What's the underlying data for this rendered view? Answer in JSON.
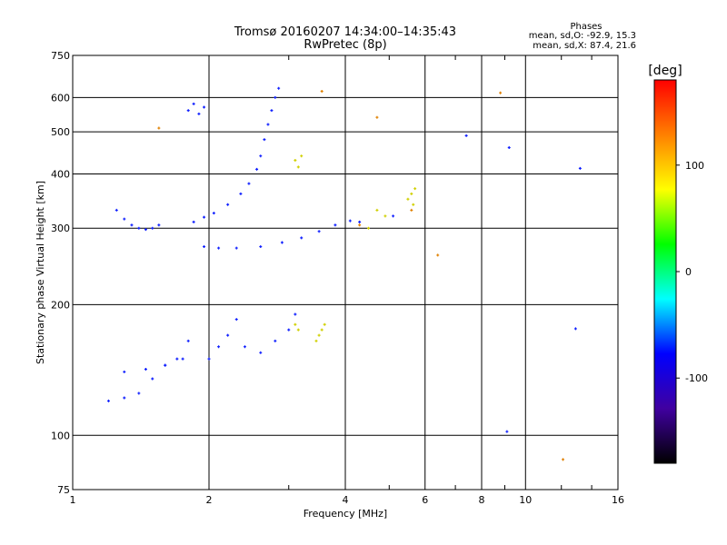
{
  "header": {
    "title_line1": "Tromsø 20160207 14:34:00–14:35:43",
    "title_line2": "RwPretec (8p)"
  },
  "stats": {
    "title": "Phases",
    "line1": "mean, sd,O: -92.9, 15.3",
    "line2": "mean, sd,X:  87.4, 21.6"
  },
  "colorbar": {
    "label": "[deg]",
    "ticks": [
      "100",
      "0",
      "-100"
    ],
    "tick_values": [
      100,
      0,
      -100
    ],
    "range": [
      -180,
      180
    ],
    "colors": [
      "#ff0000",
      "#ff8000",
      "#ffff00",
      "#00ff00",
      "#00ffff",
      "#0000ff",
      "#4000a0",
      "#000000"
    ]
  },
  "chart_data": {
    "type": "scatter",
    "title": "Tromsø 20160207 14:34:00–14:35:43",
    "subtitle": "RwPretec (8p)",
    "xlabel": "Frequency [MHz]",
    "ylabel": "Stationary phase Virtual Height [km]",
    "xscale": "log",
    "yscale": "log",
    "xlim": [
      1,
      16
    ],
    "ylim": [
      75,
      750
    ],
    "xticks": [
      "1",
      "2",
      "4",
      "6",
      "8",
      "10",
      "16"
    ],
    "xtick_values": [
      1,
      2,
      4,
      6,
      8,
      10,
      16
    ],
    "yticks": [
      "75",
      "100",
      "200",
      "300",
      "400",
      "500",
      "600",
      "750"
    ],
    "ytick_values": [
      75,
      100,
      200,
      300,
      400,
      500,
      600,
      750
    ],
    "grid": true,
    "series": [
      {
        "color": "#1020ff",
        "phase": "O-mode",
        "points": [
          [
            1.25,
            330
          ],
          [
            1.3,
            315
          ],
          [
            1.35,
            305
          ],
          [
            1.4,
            300
          ],
          [
            1.45,
            298
          ],
          [
            1.5,
            300
          ],
          [
            1.55,
            305
          ],
          [
            1.85,
            310
          ],
          [
            1.95,
            318
          ],
          [
            2.05,
            325
          ],
          [
            2.2,
            340
          ],
          [
            2.35,
            360
          ],
          [
            2.45,
            380
          ],
          [
            2.55,
            410
          ],
          [
            2.6,
            440
          ],
          [
            2.65,
            480
          ],
          [
            2.7,
            520
          ],
          [
            2.75,
            560
          ],
          [
            2.8,
            600
          ],
          [
            2.85,
            630
          ],
          [
            1.8,
            560
          ],
          [
            1.85,
            580
          ],
          [
            1.9,
            550
          ],
          [
            1.95,
            570
          ],
          [
            1.95,
            272
          ],
          [
            2.1,
            270
          ],
          [
            2.3,
            270
          ],
          [
            2.6,
            272
          ],
          [
            2.9,
            278
          ],
          [
            3.2,
            285
          ],
          [
            3.5,
            295
          ],
          [
            3.8,
            305
          ],
          [
            4.1,
            312
          ],
          [
            1.2,
            120
          ],
          [
            1.3,
            122
          ],
          [
            1.4,
            125
          ],
          [
            1.5,
            135
          ],
          [
            1.6,
            145
          ],
          [
            1.7,
            150
          ],
          [
            1.8,
            165
          ],
          [
            1.3,
            140
          ],
          [
            1.45,
            142
          ],
          [
            1.6,
            145
          ],
          [
            1.75,
            150
          ],
          [
            2.0,
            150
          ],
          [
            2.1,
            160
          ],
          [
            2.2,
            170
          ],
          [
            2.3,
            185
          ],
          [
            2.4,
            160
          ],
          [
            2.6,
            155
          ],
          [
            2.8,
            165
          ],
          [
            3.0,
            175
          ],
          [
            3.1,
            190
          ],
          [
            4.3,
            310
          ],
          [
            5.1,
            320
          ],
          [
            9.2,
            460
          ],
          [
            7.4,
            490
          ],
          [
            13.2,
            412
          ],
          [
            9.1,
            102
          ],
          [
            12.9,
            176
          ]
        ]
      },
      {
        "color": "#d0d000",
        "phase": "X-mode",
        "points": [
          [
            3.1,
            430
          ],
          [
            3.2,
            440
          ],
          [
            3.15,
            415
          ],
          [
            3.5,
            170
          ],
          [
            3.55,
            175
          ],
          [
            3.6,
            180
          ],
          [
            3.45,
            165
          ],
          [
            3.1,
            180
          ],
          [
            3.15,
            175
          ],
          [
            5.6,
            360
          ],
          [
            5.65,
            340
          ],
          [
            5.7,
            370
          ],
          [
            5.5,
            350
          ],
          [
            4.7,
            330
          ],
          [
            4.9,
            320
          ],
          [
            4.5,
            300
          ]
        ]
      },
      {
        "color": "#e08000",
        "phase": "X-mode",
        "points": [
          [
            5.6,
            330
          ],
          [
            4.3,
            305
          ],
          [
            3.55,
            620
          ],
          [
            4.7,
            540
          ],
          [
            1.55,
            510
          ],
          [
            12.1,
            88
          ],
          [
            6.4,
            260
          ],
          [
            8.8,
            615
          ]
        ]
      }
    ]
  }
}
